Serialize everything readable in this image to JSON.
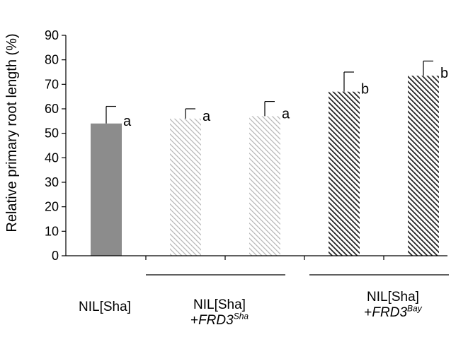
{
  "chart_data": {
    "type": "bar",
    "title": "",
    "xlabel": "",
    "ylabel": "Relative primary root length (%)",
    "ylim": [
      0,
      90
    ],
    "yticks": [
      0,
      10,
      20,
      30,
      40,
      50,
      60,
      70,
      80,
      90
    ],
    "grid": false,
    "bars": [
      {
        "group": "NIL[Sha]",
        "value": 54,
        "error": 7,
        "letter": "a",
        "fill": "solid-gray"
      },
      {
        "group": "NIL[Sha] +FRD3Sha",
        "value": 56,
        "error": 4,
        "letter": "a",
        "fill": "light-hatch"
      },
      {
        "group": "NIL[Sha] +FRD3Sha",
        "value": 57,
        "error": 6,
        "letter": "a",
        "fill": "light-hatch"
      },
      {
        "group": "NIL[Sha] +FRD3Bay",
        "value": 67,
        "error": 8,
        "letter": "b",
        "fill": "dark-hatch"
      },
      {
        "group": "NIL[Sha] +FRD3Bay",
        "value": 73.5,
        "error": 6,
        "letter": "b",
        "fill": "dark-hatch"
      }
    ],
    "groups": [
      {
        "line1": "NIL[Sha]",
        "line2_prefix": "",
        "line2_gene": "",
        "line2_sup": ""
      },
      {
        "line1": "NIL[Sha]",
        "line2_prefix": "+",
        "line2_gene": "FRD3",
        "line2_sup": "Sha"
      },
      {
        "line1": "NIL[Sha]",
        "line2_prefix": "+",
        "line2_gene": "FRD3",
        "line2_sup": "Bay"
      }
    ]
  },
  "colors": {
    "solid_gray": "#8c8c8c",
    "light_hatch": "#b4b4b4",
    "dark_hatch": "#1a1a1a",
    "axis": "#000000"
  }
}
